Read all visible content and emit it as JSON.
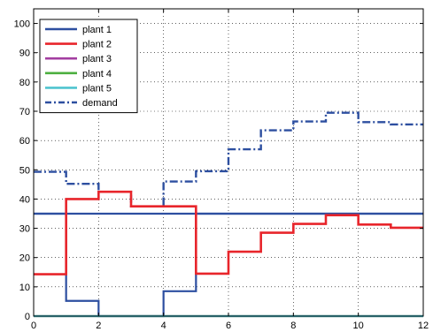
{
  "chart_data": {
    "type": "line",
    "title": "",
    "xlabel": "",
    "ylabel": "",
    "xlim": [
      0,
      12
    ],
    "ylim": [
      0,
      105
    ],
    "x_ticks": [
      "0",
      "2",
      "4",
      "6",
      "8",
      "10",
      "12"
    ],
    "y_ticks": [
      "0",
      "10",
      "20",
      "30",
      "40",
      "50",
      "60",
      "70",
      "80",
      "90",
      "100"
    ],
    "grid": true,
    "legend_position": "top-left",
    "step": true,
    "x_steps": [
      0,
      1,
      2,
      3,
      4,
      5,
      6,
      7,
      8,
      9,
      10,
      11,
      12
    ],
    "series": [
      {
        "name": "plant 1",
        "color": "#2d4fa0",
        "style": "solid",
        "values": [
          35,
          35,
          35,
          35,
          35,
          35,
          35,
          35,
          35,
          35,
          35,
          35
        ]
      },
      {
        "name": "plant 2",
        "color": "#e8252b",
        "style": "solid",
        "values": [
          14.3,
          40,
          42.5,
          37.5,
          37.5,
          14.5,
          22,
          28.5,
          31.5,
          34.5,
          31.3,
          30.2
        ]
      },
      {
        "name": "plant 3",
        "color": "#a33ea1",
        "style": "solid",
        "values": [
          0,
          0,
          0,
          0,
          0,
          0,
          0,
          0,
          0,
          0,
          0,
          0
        ]
      },
      {
        "name": "plant 4",
        "color": "#4caf3f",
        "style": "solid",
        "values": [
          0,
          0,
          0,
          0,
          0,
          0,
          0,
          0,
          0,
          0,
          0,
          0
        ]
      },
      {
        "name": "plant 5",
        "color": "#4fc4cf",
        "style": "solid",
        "values": [
          0,
          0,
          0,
          0,
          0,
          0,
          0,
          0,
          0,
          0,
          0,
          0
        ]
      },
      {
        "name": "demand",
        "color": "#2d4fa0",
        "style": "dashdot",
        "values": [
          49.3,
          45.2,
          42.5,
          37.5,
          46,
          49.5,
          57,
          63.5,
          66.5,
          69.5,
          66.3,
          65.5
        ]
      }
    ],
    "plant1_actual": [
      35,
      5.2,
      0,
      0,
      8.5,
      35,
      35,
      35,
      35,
      35,
      35,
      35
    ]
  }
}
